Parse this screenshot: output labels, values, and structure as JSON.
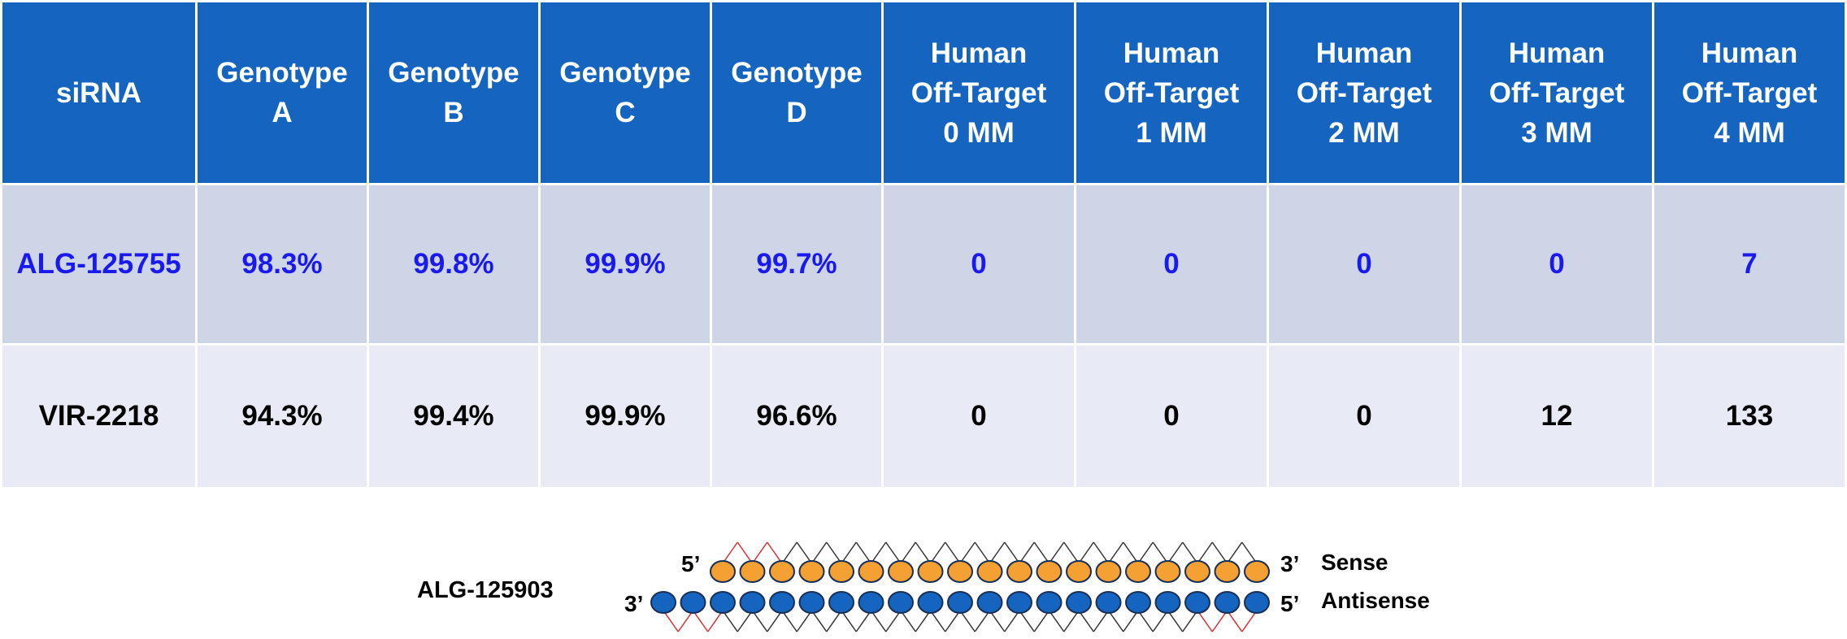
{
  "table": {
    "headers": [
      [
        "siRNA"
      ],
      [
        "Genotype",
        "A"
      ],
      [
        "Genotype",
        "B"
      ],
      [
        "Genotype",
        "C"
      ],
      [
        "Genotype",
        "D"
      ],
      [
        "Human",
        "Off-Target",
        "0 MM"
      ],
      [
        "Human",
        "Off-Target",
        "1 MM"
      ],
      [
        "Human",
        "Off-Target",
        "2 MM"
      ],
      [
        "Human",
        "Off-Target",
        "3 MM"
      ],
      [
        "Human",
        "Off-Target",
        "4 MM"
      ]
    ],
    "rows": [
      [
        "ALG-125755",
        "98.3%",
        "99.8%",
        "99.9%",
        "99.7%",
        "0",
        "0",
        "0",
        "0",
        "7"
      ],
      [
        "VIR-2218",
        "94.3%",
        "99.4%",
        "99.9%",
        "96.6%",
        "0",
        "0",
        "0",
        "12",
        "133"
      ]
    ],
    "colors": {
      "header_bg": "#1565c0",
      "row1_bg": "#cdd5e6",
      "row1_text": "#1a1aee",
      "row2_bg": "#e8eaf5"
    }
  },
  "diagram": {
    "label": "ALG-125903",
    "sense": {
      "end5": "5’",
      "end3": "3’",
      "name": "Sense",
      "beads": 19,
      "color": "#f5a033"
    },
    "antisense": {
      "end3": "3’",
      "end5": "5’",
      "name": "Antisense",
      "beads": 21,
      "color": "#1565c0"
    }
  }
}
